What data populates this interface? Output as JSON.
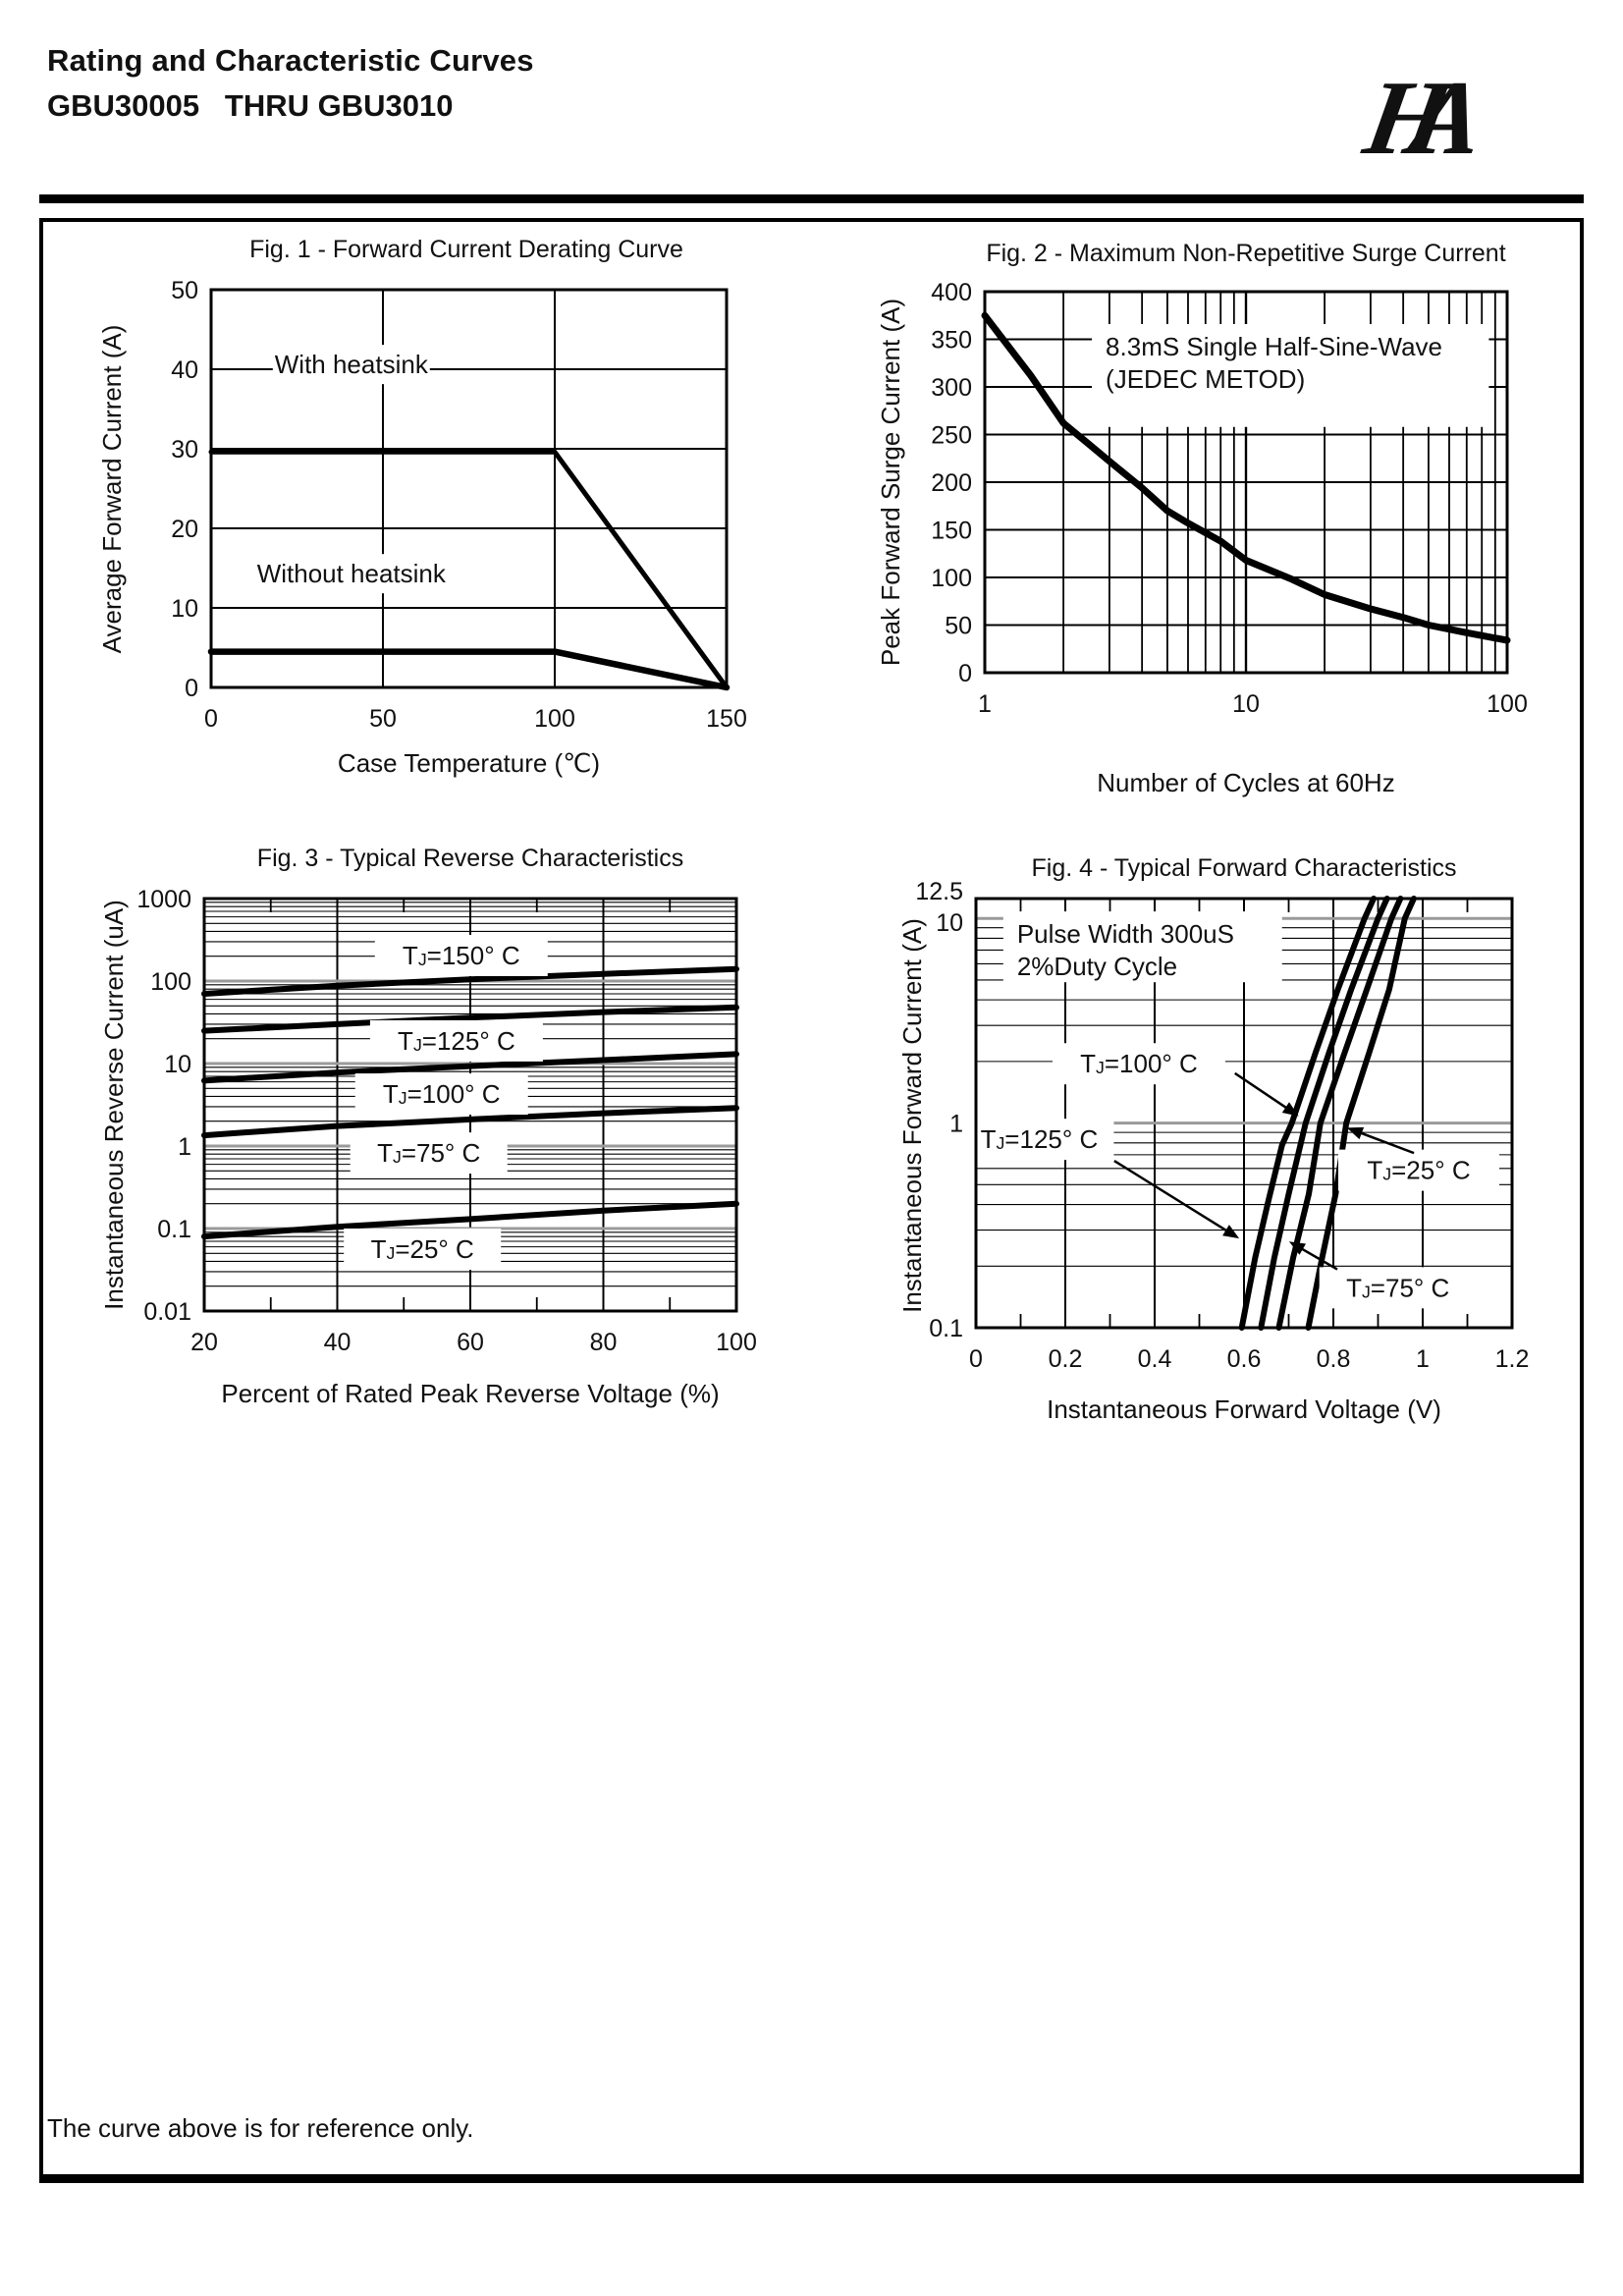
{
  "page": {
    "header": {
      "title": "Rating and Characteristic Curves",
      "subtitle": "GBU30005   THRU GBU3010",
      "logo_text": "HA"
    },
    "footer_note": "The curve above is for reference only."
  },
  "chart_data": [
    {
      "id": "fig1",
      "type": "line",
      "title": "Fig. 1 - Forward Current Derating Curve",
      "xlabel": "Case Temperature (℃)",
      "ylabel": "Average Forward Current (A)",
      "x": {
        "scale": "linear",
        "min": 0,
        "max": 150,
        "ticks": [
          0,
          50,
          100,
          150
        ],
        "grid": [
          50,
          100
        ]
      },
      "y": {
        "scale": "linear",
        "min": 0,
        "max": 50,
        "ticks": [
          50,
          40,
          30,
          20,
          10,
          0
        ],
        "grid": [
          10,
          20,
          30,
          40
        ]
      },
      "grid": true,
      "legend_position": "in-plot-text",
      "series": [
        {
          "name": "With heatsink",
          "width": 5,
          "points": [
            [
              0,
              29.6
            ],
            [
              100,
              29.6
            ],
            [
              150,
              0
            ]
          ]
        },
        {
          "name": "Without heatsink",
          "width": 6.5,
          "points": [
            [
              0,
              4.5
            ],
            [
              100,
              4.5
            ],
            [
              150,
              0
            ]
          ]
        }
      ],
      "labels": [
        {
          "text": "With heatsink",
          "fx": 0.272,
          "fy": 0.188,
          "w": 160,
          "h": 40
        },
        {
          "text": "Without heatsink",
          "fx": 0.272,
          "fy": 0.714,
          "w": 196,
          "h": 40
        }
      ]
    },
    {
      "id": "fig2",
      "type": "line",
      "title": "Fig. 2 - Maximum Non-Repetitive Surge Current",
      "xlabel": "Number of Cycles at 60Hz",
      "ylabel": "Peak Forward Surge Current (A)",
      "x": {
        "scale": "log",
        "min": 1,
        "max": 100,
        "ticks": [
          1,
          10,
          100
        ]
      },
      "y": {
        "scale": "linear",
        "min": 0,
        "max": 400,
        "ticks": [
          400,
          350,
          300,
          250,
          200,
          150,
          100,
          50,
          0
        ],
        "grid": [
          50,
          100,
          150,
          200,
          250,
          300,
          350
        ]
      },
      "grid": true,
      "annotation": {
        "lines": [
          "8.3mS Single Half-Sine-Wave",
          "(JEDEC METOD)"
        ],
        "fx": 0.205,
        "fy": 0.085,
        "fw": 0.76,
        "fh": 0.27
      },
      "series": [
        {
          "name": "Maximum non-repetitive surge current",
          "width": 7,
          "points": [
            [
              1,
              375
            ],
            [
              1.5,
              312
            ],
            [
              2,
              262
            ],
            [
              2.5,
              240
            ],
            [
              3,
              222
            ],
            [
              4,
              194
            ],
            [
              5,
              170
            ],
            [
              6,
              157
            ],
            [
              8,
              138
            ],
            [
              10,
              118
            ],
            [
              15,
              98
            ],
            [
              20,
              82
            ],
            [
              30,
              67
            ],
            [
              40,
              58
            ],
            [
              50,
              50
            ],
            [
              70,
              42
            ],
            [
              100,
              34
            ]
          ]
        }
      ]
    },
    {
      "id": "fig3",
      "type": "line",
      "title": "Fig. 3 - Typical Reverse Characteristics",
      "xlabel": "Percent of Rated Peak Reverse Voltage (%)",
      "ylabel": "Instantaneous Reverse Current (uA)",
      "x": {
        "scale": "linear",
        "min": 20,
        "max": 100,
        "ticks": [
          20,
          40,
          60,
          80,
          100
        ],
        "grid": [
          40,
          60,
          80
        ],
        "stubs": [
          30,
          50,
          70,
          90
        ]
      },
      "y": {
        "scale": "log",
        "min": 0.01,
        "max": 1000,
        "ticks": [
          1000,
          100,
          10,
          1,
          0.1,
          0.01
        ],
        "decade_gray": true
      },
      "grid": true,
      "series": [
        {
          "name": "TJ=150° C",
          "width": 6,
          "points": [
            [
              20,
              70
            ],
            [
              40,
              88
            ],
            [
              60,
              105
            ],
            [
              80,
              122
            ],
            [
              100,
              140
            ]
          ]
        },
        {
          "name": "TJ=125° C",
          "width": 6,
          "points": [
            [
              20,
              25
            ],
            [
              40,
              30
            ],
            [
              60,
              36
            ],
            [
              80,
              42
            ],
            [
              100,
              48
            ]
          ]
        },
        {
          "name": "TJ=100° C",
          "width": 6,
          "points": [
            [
              20,
              6.2
            ],
            [
              40,
              7.8
            ],
            [
              60,
              9.3
            ],
            [
              80,
              11
            ],
            [
              100,
              13
            ]
          ]
        },
        {
          "name": "TJ=75° C",
          "width": 6,
          "points": [
            [
              20,
              1.35
            ],
            [
              40,
              1.75
            ],
            [
              60,
              2.1
            ],
            [
              80,
              2.5
            ],
            [
              100,
              2.9
            ]
          ]
        },
        {
          "name": "TJ=25° C",
          "width": 6,
          "points": [
            [
              20,
              0.08
            ],
            [
              40,
              0.105
            ],
            [
              60,
              0.13
            ],
            [
              80,
              0.165
            ],
            [
              100,
              0.2
            ]
          ]
        }
      ],
      "labels": [
        {
          "text": "TJ=150° C",
          "fx": 0.483,
          "fy": 0.138,
          "w": 176,
          "h": 42
        },
        {
          "text": "TJ=125° C",
          "fx": 0.474,
          "fy": 0.345,
          "w": 176,
          "h": 42
        },
        {
          "text": "TJ=100° C",
          "fx": 0.446,
          "fy": 0.474,
          "w": 176,
          "h": 42
        },
        {
          "text": "TJ=75° C",
          "fx": 0.422,
          "fy": 0.617,
          "w": 160,
          "h": 42
        },
        {
          "text": "TJ=25° C",
          "fx": 0.41,
          "fy": 0.85,
          "w": 160,
          "h": 42
        }
      ]
    },
    {
      "id": "fig4",
      "type": "line",
      "title": "Fig. 4 - Typical Forward Characteristics",
      "xlabel": "Instantaneous Forward Voltage (V)",
      "ylabel": "Instantaneous Forward Current (A)",
      "x": {
        "scale": "linear",
        "min": 0,
        "max": 1.2,
        "ticks": [
          0,
          0.2,
          0.4,
          0.6,
          0.8,
          1,
          1.2
        ],
        "grid": [
          0.2,
          0.4,
          0.6,
          0.8,
          1
        ],
        "stubs": [
          0.1,
          0.3,
          0.5,
          0.7,
          0.9,
          1.1
        ]
      },
      "y": {
        "scale": "log",
        "min": 0.1,
        "max": 12.5,
        "ticks": [
          {
            "v": 12.5,
            "dy": -8
          },
          {
            "v": 10,
            "dy": 4
          },
          1,
          0.1
        ],
        "decade_gray": true
      },
      "grid": true,
      "annotation": {
        "lines": [
          "Pulse Width 300uS",
          "2%Duty Cycle"
        ],
        "fx": 0.051,
        "fy": 0.03,
        "fw": 0.52,
        "fh": 0.165
      },
      "series": [
        {
          "name": "TJ=125° C",
          "width": 6,
          "points": [
            [
              0.595,
              0.1
            ],
            [
              0.625,
              0.22
            ],
            [
              0.655,
              0.42
            ],
            [
              0.685,
              0.78
            ],
            [
              0.707,
              1.0
            ],
            [
              0.76,
              2.2
            ],
            [
              0.81,
              4.5
            ],
            [
              0.87,
              10
            ],
            [
              0.89,
              12.5
            ]
          ]
        },
        {
          "name": "TJ=100° C",
          "width": 6,
          "points": [
            [
              0.638,
              0.1
            ],
            [
              0.668,
              0.22
            ],
            [
              0.7,
              0.45
            ],
            [
              0.738,
              1.0
            ],
            [
              0.79,
              2.2
            ],
            [
              0.84,
              4.5
            ],
            [
              0.9,
              10
            ],
            [
              0.92,
              12.5
            ]
          ]
        },
        {
          "name": "TJ=75° C",
          "width": 6,
          "points": [
            [
              0.678,
              0.1
            ],
            [
              0.71,
              0.22
            ],
            [
              0.745,
              0.45
            ],
            [
              0.771,
              1.0
            ],
            [
              0.825,
              2.2
            ],
            [
              0.875,
              4.5
            ],
            [
              0.93,
              10
            ],
            [
              0.95,
              12.5
            ]
          ]
        },
        {
          "name": "TJ=25° C",
          "width": 6,
          "points": [
            [
              0.744,
              0.1
            ],
            [
              0.775,
              0.22
            ],
            [
              0.805,
              0.45
            ],
            [
              0.829,
              1.0
            ],
            [
              0.88,
              2.2
            ],
            [
              0.925,
              4.5
            ],
            [
              0.96,
              10
            ],
            [
              0.98,
              12.5
            ]
          ]
        }
      ],
      "labels": [
        {
          "text": "TJ=100° C",
          "fx": 0.304,
          "fy": 0.385,
          "w": 176,
          "h": 42
        },
        {
          "text": "TJ=25° C",
          "fx": 0.826,
          "fy": 0.633,
          "w": 164,
          "h": 42
        },
        {
          "text": "TJ=125° C",
          "fx": 0.118,
          "fy": 0.561,
          "w": 152,
          "h": 42
        },
        {
          "text": "TJ=75° C",
          "fx": 0.787,
          "fy": 0.907,
          "w": 160,
          "h": 42
        }
      ],
      "arrows": [
        {
          "x1": 0.483,
          "y1": 0.407,
          "x2": 0.602,
          "y2": 0.507
        },
        {
          "x1": 0.817,
          "y1": 0.593,
          "x2": 0.692,
          "y2": 0.534
        },
        {
          "x1": 0.258,
          "y1": 0.611,
          "x2": 0.491,
          "y2": 0.792
        },
        {
          "x1": 0.674,
          "y1": 0.864,
          "x2": 0.584,
          "y2": 0.799
        }
      ]
    }
  ]
}
